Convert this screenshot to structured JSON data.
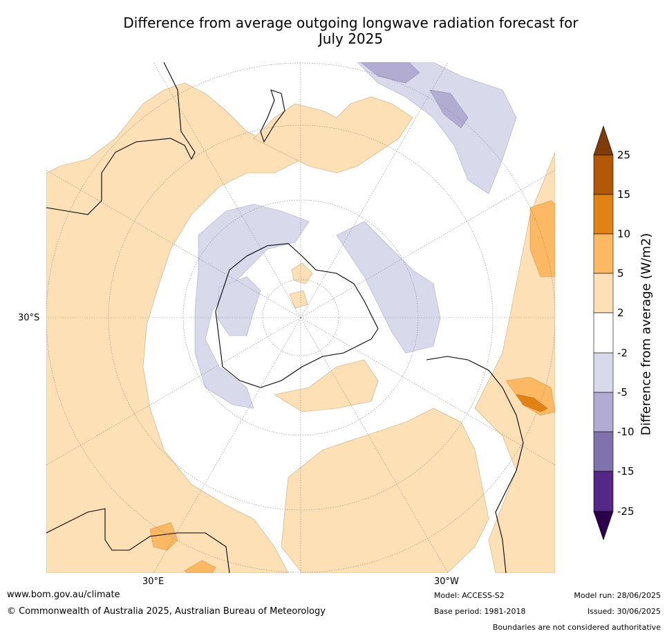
{
  "title_line1": "Difference from average outgoing longwave radiation forecast for",
  "title_line2": "July 2025",
  "graticule_labels": {
    "lat_30s": "30°S",
    "lon_30e": "30°E",
    "lon_30w": "30°W"
  },
  "colorbar": {
    "label": "Difference from average (W/m2)",
    "ticks": [
      "25",
      "15",
      "10",
      "5",
      "2",
      "-2",
      "-5",
      "-10",
      "-15",
      "-25"
    ],
    "colors": {
      "over": "#7f3b08",
      "15_25": "#b35806",
      "10_15": "#e08214",
      "5_10": "#fdb863",
      "2_5": "#fee0b6",
      "neutral": "#ffffff",
      "neg2_neg5": "#d8daeb",
      "neg5_neg10": "#b2abd2",
      "neg10_neg15": "#8073ac",
      "neg15_neg25": "#542788",
      "under": "#2d004b"
    }
  },
  "footer": {
    "url": "www.bom.gov.au/climate",
    "copyright": "© Commonwealth of Australia 2025, Australian Bureau of Meteorology",
    "model": "Model: ACCESS-S2",
    "base_period": "Base period: 1981-2018",
    "model_run": "Model run: 28/06/2025",
    "issued": "Issued: 30/06/2025",
    "disclaimer": "Boundaries are not considered authoritative"
  }
}
